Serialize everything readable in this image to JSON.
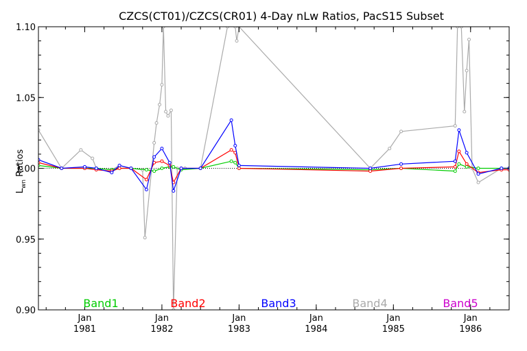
{
  "chart_data": {
    "type": "line",
    "title": "CZCS(CT01)/CZCS(CR01) 4-Day nLw Ratios, PacS15 Subset",
    "xlabel": "",
    "ylabel": "Lwn Ratios",
    "ylabel_main": "L",
    "ylabel_sub": "wn",
    "ylabel_rest": " Ratios",
    "xlim": [
      1980.4,
      1986.5
    ],
    "ylim": [
      0.9,
      1.1
    ],
    "y_ticks": [
      "0.90",
      "0.95",
      "1.00",
      "1.05",
      "1.10"
    ],
    "y_tick_values": [
      0.9,
      0.95,
      1.0,
      1.05,
      1.1
    ],
    "x_ticks": [
      {
        "month": "Jan",
        "year": "1981",
        "value": 1981.0
      },
      {
        "month": "Jan",
        "year": "1982",
        "value": 1982.0
      },
      {
        "month": "Jan",
        "year": "1983",
        "value": 1983.0
      },
      {
        "month": "Jan",
        "year": "1984",
        "value": 1984.0
      },
      {
        "month": "Jan",
        "year": "1985",
        "value": 1985.0
      },
      {
        "month": "Jan",
        "year": "1986",
        "value": 1986.0
      }
    ],
    "reference_line": 1.0,
    "grid": false,
    "legend_position": "bottom",
    "series": [
      {
        "name": "Band1",
        "color": "#00cc00",
        "x": [
          1980.4,
          1980.7,
          1981.0,
          1981.15,
          1981.35,
          1981.45,
          1981.6,
          1981.8,
          1981.9,
          1982.0,
          1982.1,
          1982.15,
          1982.25,
          1982.5,
          1982.9,
          1982.95,
          1983.0,
          1984.7,
          1985.1,
          1985.8,
          1985.85,
          1985.95,
          1986.1,
          1986.4,
          1986.5
        ],
        "y": [
          1.002,
          1.0,
          1.0,
          1.0,
          0.999,
          1.0,
          1.0,
          0.999,
          0.998,
          1.0,
          1.001,
          1.001,
          0.999,
          1.0,
          1.005,
          1.004,
          1.0,
          0.999,
          1.0,
          0.998,
          1.003,
          1.001,
          1.0,
          1.0,
          1.0
        ]
      },
      {
        "name": "Band2",
        "color": "#ff0000",
        "x": [
          1980.4,
          1980.7,
          1981.0,
          1981.15,
          1981.35,
          1981.45,
          1981.6,
          1981.8,
          1981.9,
          1982.0,
          1982.1,
          1982.15,
          1982.25,
          1982.5,
          1982.9,
          1982.95,
          1983.0,
          1984.7,
          1985.1,
          1985.8,
          1985.85,
          1985.95,
          1986.1,
          1986.4,
          1986.5
        ],
        "y": [
          1.004,
          1.0,
          1.0,
          0.999,
          0.998,
          1.0,
          1.0,
          0.992,
          1.004,
          1.005,
          1.002,
          0.99,
          1.0,
          1.0,
          1.013,
          1.011,
          1.0,
          0.998,
          1.0,
          1.001,
          1.012,
          1.003,
          0.997,
          0.999,
          0.999
        ]
      },
      {
        "name": "Band3",
        "color": "#0000ff",
        "x": [
          1980.4,
          1980.7,
          1981.0,
          1981.15,
          1981.35,
          1981.45,
          1981.6,
          1981.8,
          1981.9,
          1982.0,
          1982.1,
          1982.15,
          1982.25,
          1982.5,
          1982.9,
          1982.95,
          1983.0,
          1984.7,
          1985.1,
          1985.8,
          1985.85,
          1985.95,
          1986.1,
          1986.4,
          1986.5
        ],
        "y": [
          1.006,
          1.0,
          1.001,
          1.0,
          0.997,
          1.002,
          1.0,
          0.985,
          1.008,
          1.014,
          1.004,
          0.984,
          1.0,
          1.0,
          1.034,
          1.016,
          1.002,
          1.0,
          1.003,
          1.005,
          1.027,
          1.011,
          0.996,
          1.0,
          1.0
        ]
      },
      {
        "name": "Band4",
        "color": "#aaaaaa",
        "x": [
          1980.4,
          1980.7,
          1980.95,
          1981.1,
          1981.15,
          1981.35,
          1981.45,
          1981.6,
          1981.75,
          1981.78,
          1981.9,
          1981.93,
          1981.97,
          1982.0,
          1982.02,
          1982.05,
          1982.08,
          1982.12,
          1982.15,
          1982.2,
          1982.3,
          1982.5,
          1982.85,
          1982.95,
          1982.97,
          1983.0,
          1984.7,
          1984.95,
          1985.1,
          1985.8,
          1985.83,
          1985.88,
          1985.92,
          1985.95,
          1985.98,
          1986.02,
          1986.1,
          1986.4,
          1986.5
        ],
        "y": [
          1.027,
          1.0,
          1.013,
          1.007,
          1.0,
          0.999,
          1.002,
          1.0,
          0.999,
          0.951,
          1.018,
          1.032,
          1.045,
          1.059,
          1.1,
          1.04,
          1.037,
          1.041,
          0.9,
          1.0,
          1.0,
          1.0,
          1.1,
          1.1,
          1.09,
          1.1,
          1.0,
          1.014,
          1.026,
          1.03,
          1.1,
          1.1,
          1.04,
          1.069,
          1.091,
          1.0,
          0.99,
          1.0,
          1.0
        ]
      },
      {
        "name": "Band5",
        "color": "#cc00cc",
        "x": [],
        "y": []
      }
    ]
  }
}
